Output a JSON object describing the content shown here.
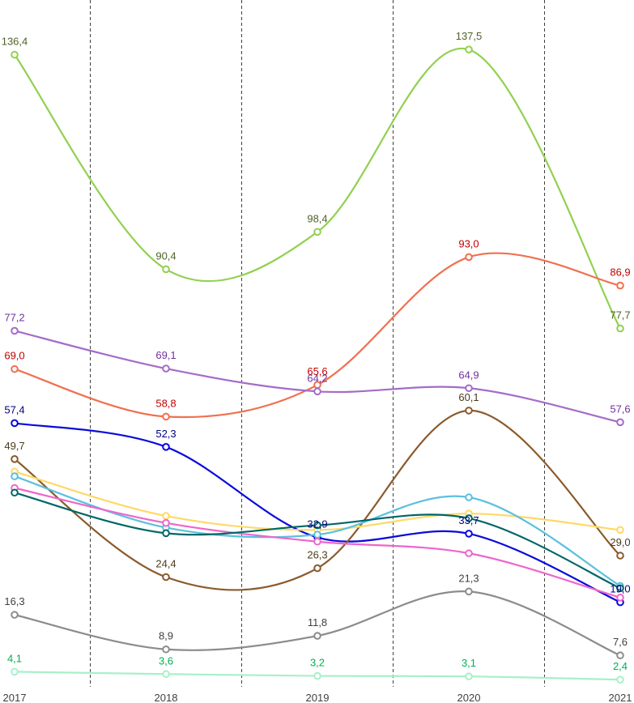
{
  "chart_data": {
    "type": "line",
    "title": "",
    "xlabel": "",
    "ylabel": "",
    "x": [
      "2017",
      "2018",
      "2019",
      "2020",
      "2021"
    ],
    "ylim": [
      0,
      145
    ],
    "grid": "vertical-dashed-between-years",
    "series": [
      {
        "name": "series-1",
        "color": "#92D050",
        "label_color": "#4F6228",
        "values": [
          136.4,
          90.4,
          98.4,
          137.5,
          77.7
        ],
        "labels": [
          "136,4",
          "90,4",
          "98,4",
          "137,5",
          "77,7"
        ]
      },
      {
        "name": "series-2",
        "color": "#F0704F",
        "label_color": "#C00000",
        "values": [
          69.0,
          58.8,
          65.6,
          93.0,
          86.9
        ],
        "labels": [
          "69,0",
          "58,8",
          "65,6",
          "93,0",
          "86,9"
        ]
      },
      {
        "name": "series-3",
        "color": "#A56CC8",
        "label_color": "#7030A0",
        "values": [
          77.2,
          69.1,
          64.2,
          64.9,
          57.6
        ],
        "labels": [
          "77,2",
          "69,1",
          "64,2",
          "64,9",
          "57,6"
        ]
      },
      {
        "name": "series-4",
        "color": "#0A0ADC",
        "label_color": "#000080",
        "values": [
          57.4,
          52.3,
          32.9,
          33.7,
          19.0
        ],
        "labels": [
          "57,4",
          "52,3",
          "32,9",
          "33,7",
          "19,0"
        ]
      },
      {
        "name": "series-5",
        "color": "#8B5A2B",
        "label_color": "#4A3B1C",
        "values": [
          49.7,
          24.4,
          26.3,
          60.1,
          29.0
        ],
        "labels": [
          "49,7",
          "24,4",
          "26,3",
          "60,1",
          "29,0"
        ]
      },
      {
        "name": "series-6",
        "color": "#FFD966",
        "label_color": "#7F6000",
        "values": [
          47.0,
          37.5,
          34.5,
          38.0,
          34.5
        ],
        "labels": []
      },
      {
        "name": "series-7",
        "color": "#5BC0DE",
        "label_color": "#31859C",
        "values": [
          46.0,
          35.0,
          33.5,
          41.5,
          22.5
        ],
        "labels": []
      },
      {
        "name": "series-8",
        "color": "#EE66CC",
        "label_color": "#C03090",
        "values": [
          43.5,
          36.0,
          32.0,
          29.5,
          20.0
        ],
        "labels": []
      },
      {
        "name": "series-9",
        "color": "#006666",
        "label_color": "#004040",
        "values": [
          42.5,
          33.8,
          35.5,
          37.0,
          22.0
        ],
        "labels": []
      },
      {
        "name": "series-10",
        "color": "#8C8C8C",
        "label_color": "#404040",
        "values": [
          16.3,
          8.9,
          11.8,
          21.3,
          7.6
        ],
        "labels": [
          "16,3",
          "8,9",
          "11,8",
          "21,3",
          "7,6"
        ]
      },
      {
        "name": "series-11",
        "color": "#A8F0C8",
        "label_color": "#00B050",
        "values": [
          4.1,
          3.6,
          3.2,
          3.1,
          2.4
        ],
        "labels": [
          "4,1",
          "3,6",
          "3,2",
          "3,1",
          "2,4"
        ]
      }
    ]
  }
}
